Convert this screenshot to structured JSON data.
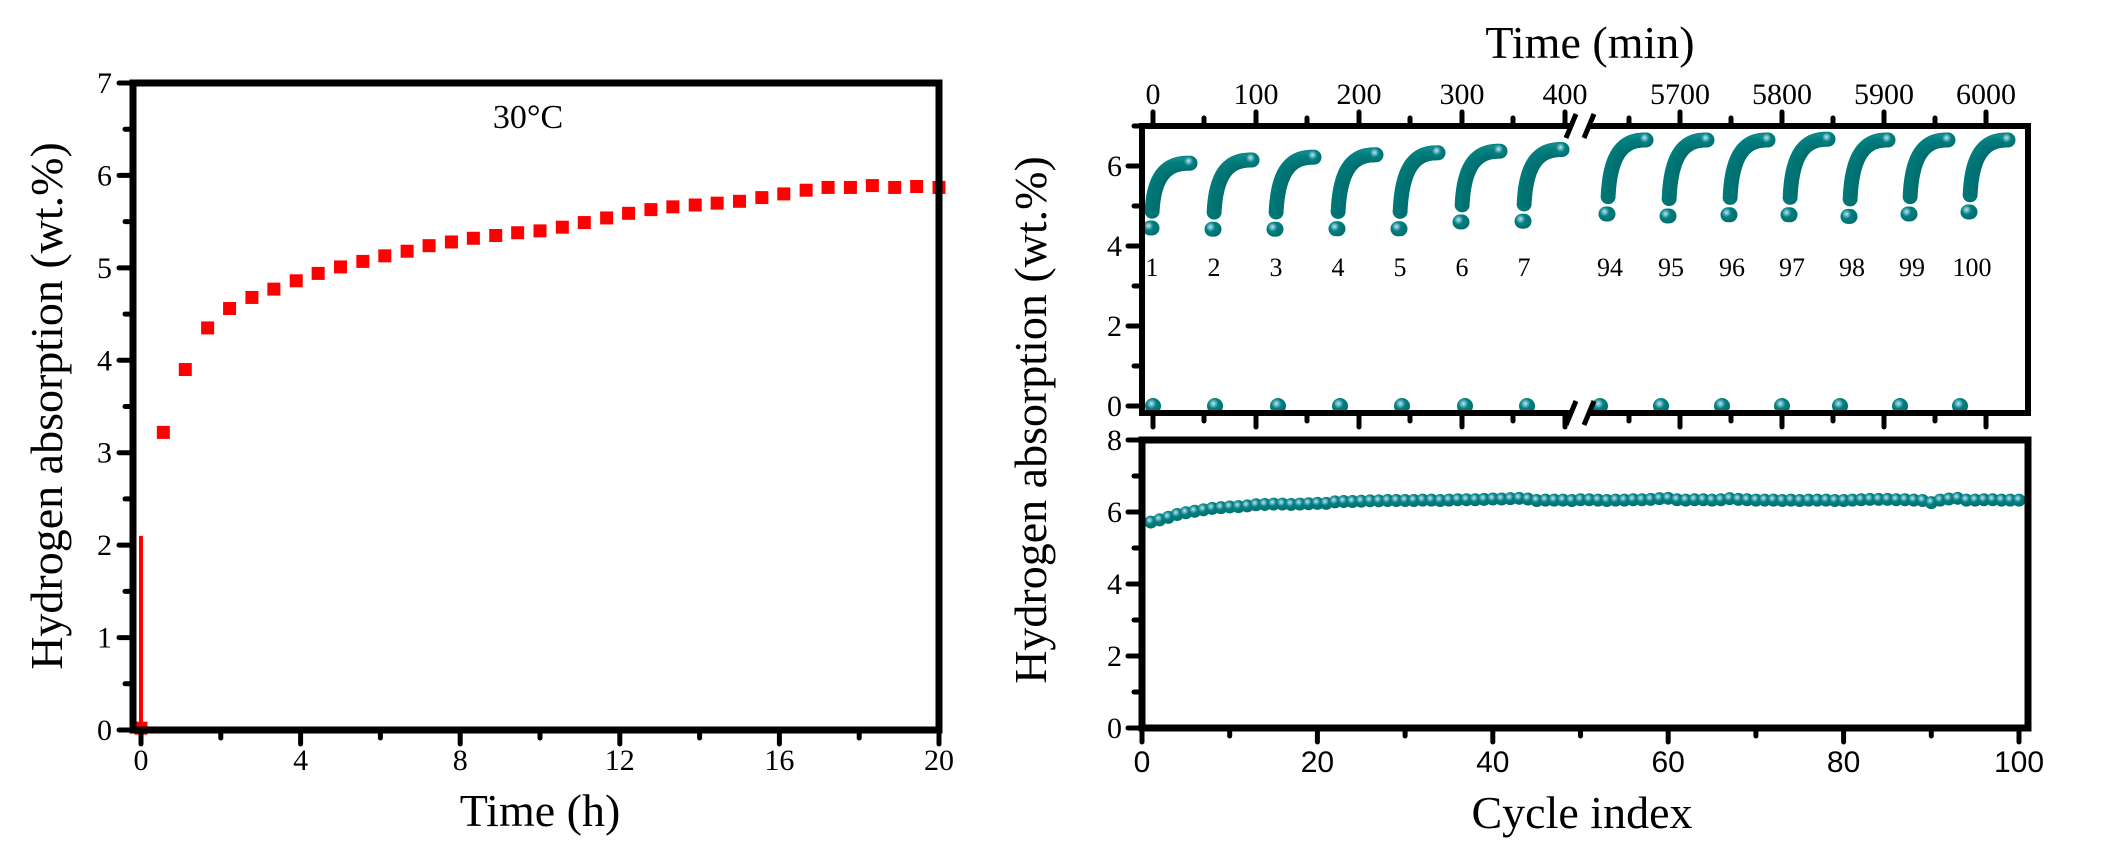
{
  "chart_data": [
    {
      "id": "left",
      "type": "scatter",
      "title": "",
      "annotation": "30°C",
      "xlabel": "Time (h)",
      "ylabel": "Hydrogen absorption (wt.%)",
      "xlim": [
        0,
        20
      ],
      "ylim": [
        0,
        7
      ],
      "xticks": [
        0,
        4,
        8,
        12,
        16,
        20
      ],
      "yticks": [
        0,
        1,
        2,
        3,
        4,
        5,
        6,
        7
      ],
      "marker": "square",
      "color": "#ff0000",
      "initial_step": {
        "x": 0.0,
        "y_from": 0.05,
        "y_to": 2.1
      },
      "x": [
        0.0,
        0.56,
        1.11,
        1.67,
        2.22,
        2.78,
        3.33,
        3.89,
        4.44,
        5.0,
        5.56,
        6.11,
        6.67,
        7.22,
        7.78,
        8.33,
        8.89,
        9.44,
        10.0,
        10.56,
        11.11,
        11.67,
        12.22,
        12.78,
        13.33,
        13.89,
        14.44,
        15.0,
        15.56,
        16.11,
        16.67,
        17.22,
        17.78,
        18.33,
        18.89,
        19.44,
        20.0
      ],
      "y": [
        0.02,
        3.22,
        3.9,
        4.35,
        4.56,
        4.68,
        4.77,
        4.86,
        4.94,
        5.01,
        5.07,
        5.13,
        5.18,
        5.24,
        5.28,
        5.32,
        5.35,
        5.38,
        5.4,
        5.44,
        5.49,
        5.54,
        5.59,
        5.63,
        5.66,
        5.68,
        5.7,
        5.72,
        5.76,
        5.8,
        5.84,
        5.87,
        5.87,
        5.89,
        5.87,
        5.88,
        5.87
      ]
    },
    {
      "id": "right-top",
      "type": "scatter",
      "xlabel": "Time (min)",
      "ylabel": "Hydrogen absorption (wt.%)",
      "ylim": [
        0,
        7
      ],
      "yticks": [
        0,
        2,
        4,
        6
      ],
      "xticks_top": [
        "0",
        "100",
        "200",
        "300",
        "400",
        "5700",
        "5800",
        "5900",
        "6000"
      ],
      "axis_break": "between 400 and 5700",
      "color": "#008080",
      "cycles": [
        {
          "label": "1",
          "start_y": 4.45,
          "end_y": 5.72
        },
        {
          "label": "2",
          "start_y": 4.42,
          "end_y": 5.8
        },
        {
          "label": "3",
          "start_y": 4.42,
          "end_y": 5.87
        },
        {
          "label": "4",
          "start_y": 4.43,
          "end_y": 5.93
        },
        {
          "label": "5",
          "start_y": 4.43,
          "end_y": 5.98
        },
        {
          "label": "6",
          "start_y": 4.6,
          "end_y": 6.02
        },
        {
          "label": "7",
          "start_y": 4.62,
          "end_y": 6.06
        },
        {
          "label": "94",
          "start_y": 4.8,
          "end_y": 6.3
        },
        {
          "label": "95",
          "start_y": 4.75,
          "end_y": 6.3
        },
        {
          "label": "96",
          "start_y": 4.78,
          "end_y": 6.3
        },
        {
          "label": "97",
          "start_y": 4.78,
          "end_y": 6.32
        },
        {
          "label": "98",
          "start_y": 4.74,
          "end_y": 6.3
        },
        {
          "label": "99",
          "start_y": 4.8,
          "end_y": 6.3
        },
        {
          "label": "100",
          "start_y": 4.85,
          "end_y": 6.3
        }
      ],
      "desorbed_level": 0.0
    },
    {
      "id": "right-bottom",
      "type": "scatter",
      "xlabel": "Cycle index",
      "ylabel": "Hydrogen absorption (wt.%)",
      "xlim": [
        0,
        100
      ],
      "ylim": [
        0,
        8
      ],
      "xticks": [
        0,
        20,
        40,
        60,
        80,
        100
      ],
      "yticks": [
        0,
        2,
        4,
        6,
        8
      ],
      "color": "#008080",
      "x_start": 1,
      "y": [
        5.72,
        5.78,
        5.85,
        5.93,
        5.98,
        6.02,
        6.06,
        6.1,
        6.12,
        6.14,
        6.15,
        6.17,
        6.2,
        6.21,
        6.22,
        6.22,
        6.21,
        6.22,
        6.23,
        6.24,
        6.24,
        6.28,
        6.29,
        6.29,
        6.3,
        6.31,
        6.31,
        6.32,
        6.32,
        6.32,
        6.32,
        6.33,
        6.33,
        6.32,
        6.33,
        6.34,
        6.34,
        6.34,
        6.35,
        6.36,
        6.36,
        6.37,
        6.38,
        6.36,
        6.32,
        6.33,
        6.33,
        6.33,
        6.32,
        6.34,
        6.34,
        6.33,
        6.32,
        6.33,
        6.33,
        6.34,
        6.34,
        6.35,
        6.37,
        6.38,
        6.34,
        6.33,
        6.34,
        6.34,
        6.33,
        6.34,
        6.37,
        6.35,
        6.34,
        6.33,
        6.33,
        6.33,
        6.32,
        6.33,
        6.32,
        6.33,
        6.33,
        6.33,
        6.32,
        6.32,
        6.33,
        6.34,
        6.35,
        6.35,
        6.35,
        6.34,
        6.34,
        6.33,
        6.32,
        6.26,
        6.33,
        6.36,
        6.38,
        6.33,
        6.33,
        6.34,
        6.34,
        6.33,
        6.33,
        6.33
      ]
    }
  ],
  "labels": {
    "left_xlabel": "Time (h)",
    "left_ylabel": "Hydrogen absorption (wt.%)",
    "left_annotation": "30°C",
    "right_top_xlabel": "Time (min)",
    "right_ylabel": "Hydrogen absorption (wt.%)",
    "right_bottom_xlabel": "Cycle index"
  }
}
